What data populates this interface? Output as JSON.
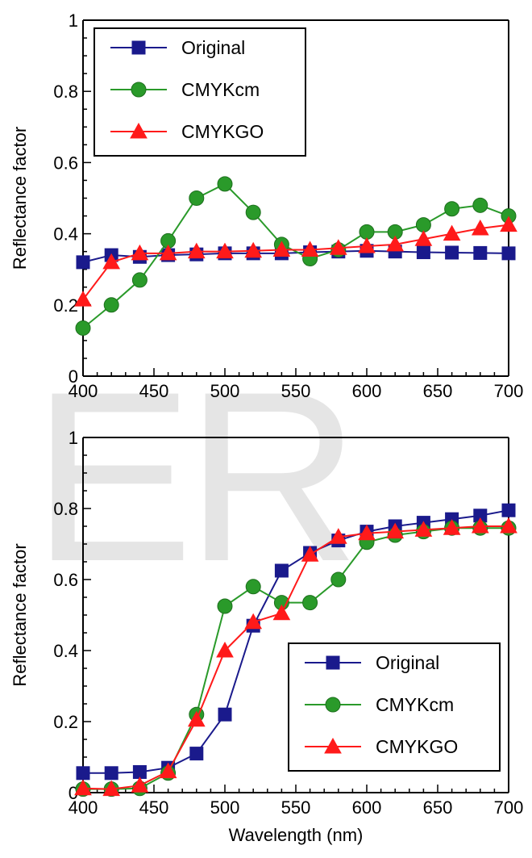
{
  "watermark": "ER",
  "chart_data": [
    {
      "type": "line",
      "title": "",
      "xlabel": "",
      "ylabel": "Reflectance factor",
      "xlim": [
        400,
        700
      ],
      "ylim": [
        0,
        1
      ],
      "xticks": [
        "400",
        "450",
        "500",
        "550",
        "600",
        "650",
        "700"
      ],
      "yticks": [
        "0",
        "0.2",
        "0.4",
        "0.6",
        "0.8",
        "1"
      ],
      "legend_position": "top-left",
      "x": [
        400,
        420,
        440,
        460,
        480,
        500,
        520,
        540,
        560,
        580,
        600,
        620,
        640,
        660,
        680,
        700
      ],
      "series": [
        {
          "name": "Original",
          "color": "#1a1a8c",
          "marker": "square",
          "values": [
            0.32,
            0.34,
            0.335,
            0.34,
            0.342,
            0.345,
            0.345,
            0.345,
            0.348,
            0.35,
            0.352,
            0.35,
            0.348,
            0.347,
            0.346,
            0.345
          ]
        },
        {
          "name": "CMYKcm",
          "color": "#2a9a2a",
          "marker": "circle",
          "values": [
            0.135,
            0.2,
            0.27,
            0.38,
            0.5,
            0.54,
            0.46,
            0.37,
            0.33,
            0.355,
            0.405,
            0.405,
            0.425,
            0.47,
            0.48,
            0.45
          ]
        },
        {
          "name": "CMYKGO",
          "color": "#ff1a1a",
          "marker": "triangle",
          "values": [
            0.215,
            0.32,
            0.345,
            0.345,
            0.35,
            0.35,
            0.352,
            0.355,
            0.355,
            0.36,
            0.365,
            0.37,
            0.385,
            0.4,
            0.415,
            0.425
          ]
        }
      ]
    },
    {
      "type": "line",
      "title": "",
      "xlabel": "Wavelength (nm)",
      "ylabel": "Reflectance factor",
      "xlim": [
        400,
        700
      ],
      "ylim": [
        0,
        1
      ],
      "xticks": [
        "400",
        "450",
        "500",
        "550",
        "600",
        "650",
        "700"
      ],
      "yticks": [
        "0",
        "0.2",
        "0.4",
        "0.6",
        "0.8",
        "1"
      ],
      "legend_position": "bottom-right",
      "x": [
        400,
        420,
        440,
        460,
        480,
        500,
        520,
        540,
        560,
        580,
        600,
        620,
        640,
        660,
        680,
        700
      ],
      "series": [
        {
          "name": "Original",
          "color": "#1a1a8c",
          "marker": "square",
          "values": [
            0.055,
            0.055,
            0.058,
            0.07,
            0.11,
            0.22,
            0.47,
            0.625,
            0.675,
            0.71,
            0.735,
            0.75,
            0.76,
            0.77,
            0.78,
            0.795
          ]
        },
        {
          "name": "CMYKcm",
          "color": "#2a9a2a",
          "marker": "circle",
          "values": [
            0.01,
            0.01,
            0.012,
            0.055,
            0.22,
            0.525,
            0.58,
            0.535,
            0.535,
            0.6,
            0.705,
            0.725,
            0.735,
            0.745,
            0.745,
            0.745
          ]
        },
        {
          "name": "CMYKGO",
          "color": "#ff1a1a",
          "marker": "triangle",
          "values": [
            0.012,
            0.01,
            0.02,
            0.06,
            0.205,
            0.4,
            0.48,
            0.505,
            0.67,
            0.72,
            0.73,
            0.735,
            0.74,
            0.745,
            0.75,
            0.75
          ]
        }
      ]
    }
  ]
}
